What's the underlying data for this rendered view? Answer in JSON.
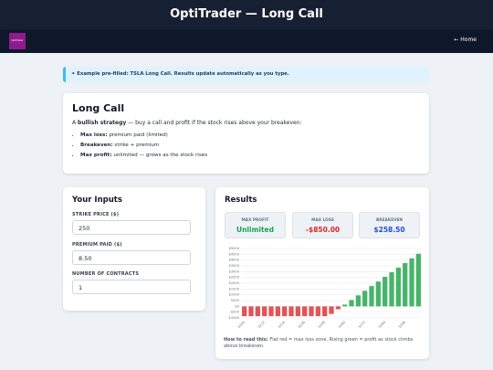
{
  "header": {
    "title": "OptiTrader — Long Call",
    "logo": "OptiTrader",
    "home": "← Home"
  },
  "banner": "✦ Example pre-filled: TSLA Long Call. Results update automatically as you type.",
  "intro": {
    "title": "Long Call",
    "text": [
      "A",
      "bullish strategy",
      "— buy a call and profit if the stock rises above your breakeven:"
    ],
    "bullets": [
      {
        "label": "Max loss:",
        "text": "premium paid (limited)"
      },
      {
        "label": "Breakeven:",
        "text": "strike + premium"
      },
      {
        "label": "Max profit:",
        "text": "unlimited — grows as the stock rises"
      }
    ]
  },
  "inputs": {
    "title": "Your Inputs",
    "fields": [
      {
        "label": "STRIKE PRICE ($)",
        "value": "250"
      },
      {
        "label": "PREMIUM PAID ($)",
        "value": "8.50"
      },
      {
        "label": "NUMBER OF CONTRACTS",
        "value": "1"
      }
    ]
  },
  "results": {
    "title": "Results",
    "stats": [
      {
        "label": "MAX PROFIT",
        "value": "Unlimited",
        "color": "#16a34a"
      },
      {
        "label": "MAX LOSS",
        "value": "-$850.00",
        "color": "#dc2626"
      },
      {
        "label": "BREAKEVEN",
        "value": "$258.50",
        "color": "#1d4ed8"
      }
    ],
    "note": {
      "bold": "How to read this:",
      "text": "Flat red = max loss zone. Rising green = profit as stock climbs above breakeven."
    }
  },
  "chart_data": {
    "type": "bar",
    "categories": [
      "$200",
      null,
      null,
      "$212",
      null,
      null,
      "$224",
      null,
      null,
      "$236",
      null,
      null,
      "$248",
      null,
      null,
      "$260",
      null,
      null,
      "$272",
      null,
      null,
      "$284",
      null,
      null,
      "$296",
      null,
      null
    ],
    "values": [
      -850,
      -850,
      -850,
      -850,
      -850,
      -850,
      -850,
      -850,
      -850,
      -850,
      -850,
      -850,
      -850,
      -650,
      -250,
      150,
      550,
      950,
      1350,
      1750,
      2150,
      2550,
      2950,
      3350,
      3750,
      4150,
      4550
    ],
    "color": "#48b46a",
    "negative_color": "#e05555",
    "ylim": [
      -1000,
      5000
    ],
    "yticks": [
      {
        "value": -1000,
        "label": "-$1000"
      },
      {
        "value": -500,
        "label": "-$500"
      },
      {
        "value": 0,
        "label": "$0"
      },
      {
        "value": 500,
        "label": "$500"
      },
      {
        "value": 1000,
        "label": "$1000"
      },
      {
        "value": 1500,
        "label": "$1500"
      },
      {
        "value": 2000,
        "label": "$2000"
      },
      {
        "value": 2500,
        "label": "$2500"
      },
      {
        "value": 3000,
        "label": "$3000"
      },
      {
        "value": 3500,
        "label": "$3500"
      },
      {
        "value": 4000,
        "label": "$4000"
      },
      {
        "value": 4500,
        "label": "$4500"
      },
      {
        "value": 5000,
        "label": "$5000"
      }
    ],
    "grid": true
  }
}
